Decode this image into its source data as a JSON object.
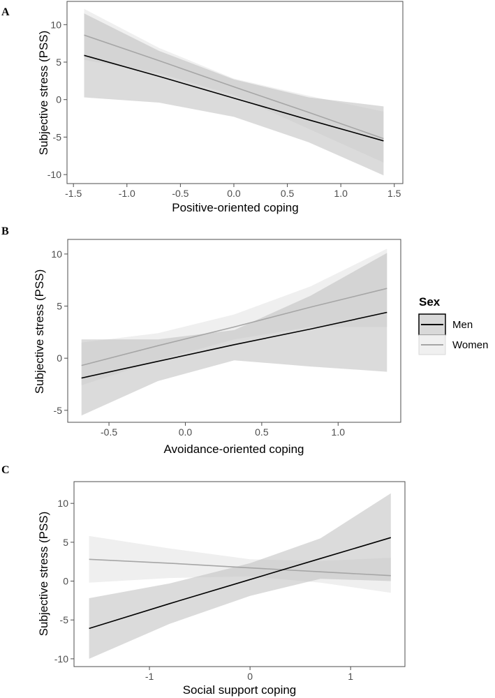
{
  "chart_data": [
    {
      "type": "line",
      "panel": "A",
      "title": "",
      "xlabel": "Positive-oriented coping",
      "ylabel": "Subjective stress (PSS)",
      "xlim": [
        -1.56,
        1.58
      ],
      "ylim": [
        -11.2,
        13.1
      ],
      "xticks": [
        -1.5,
        -1.0,
        -0.5,
        0.0,
        0.5,
        1.0,
        1.5
      ],
      "xtick_labels": [
        "-1.5",
        "-1.0",
        "-0.5",
        "0.0",
        "0.5",
        "1.0",
        "1.5"
      ],
      "yticks": [
        10,
        5,
        0,
        -5,
        -10
      ],
      "ytick_labels": [
        "10",
        "5",
        "0",
        "-5",
        "-10"
      ],
      "grid": false,
      "series": [
        {
          "name": "Women",
          "color": "#a6a6a6",
          "band_color": "#f0f0f0",
          "x": [
            -1.4,
            -0.7,
            0.0,
            0.7,
            1.4
          ],
          "y": [
            8.6,
            5.2,
            1.7,
            -1.7,
            -5.2
          ],
          "lower": [
            5.3,
            3.5,
            0.6,
            -3.9,
            -8.4
          ],
          "upper": [
            12.1,
            6.9,
            2.8,
            0.5,
            -1.6
          ]
        },
        {
          "name": "Men",
          "color": "#000000",
          "band_color": "#d9d9d9",
          "x": [
            -1.4,
            -0.7,
            0.0,
            0.7,
            1.4
          ],
          "y": [
            5.9,
            3.1,
            0.2,
            -2.7,
            -5.5
          ],
          "lower": [
            0.3,
            -0.4,
            -2.3,
            -5.7,
            -10.1
          ],
          "upper": [
            11.5,
            6.5,
            2.7,
            0.3,
            -0.9
          ]
        }
      ]
    },
    {
      "type": "line",
      "panel": "B",
      "title": "",
      "xlabel": "Avoidance-oriented coping",
      "ylabel": "Subjective stress (PSS)",
      "xlim": [
        -0.77,
        1.41
      ],
      "ylim": [
        -6.15,
        11.4
      ],
      "xticks": [
        -0.5,
        0.0,
        0.5,
        1.0
      ],
      "xtick_labels": [
        "-0.5",
        "0.0",
        "0.5",
        "1.0"
      ],
      "yticks": [
        10,
        5,
        0,
        -5
      ],
      "ytick_labels": [
        "10",
        "5",
        "0",
        "-5"
      ],
      "grid": false,
      "series": [
        {
          "name": "Women",
          "color": "#a6a6a6",
          "band_color": "#f0f0f0",
          "x": [
            -0.68,
            -0.18,
            0.32,
            0.82,
            1.32
          ],
          "y": [
            -0.7,
            1.2,
            3.0,
            4.9,
            6.7
          ],
          "lower": [
            -2.6,
            -0.2,
            1.8,
            3.0,
            3.0
          ],
          "upper": [
            1.5,
            2.4,
            4.2,
            6.9,
            10.5
          ]
        },
        {
          "name": "Men",
          "color": "#000000",
          "band_color": "#d9d9d9",
          "x": [
            -0.68,
            -0.18,
            0.32,
            0.82,
            1.32
          ],
          "y": [
            -1.9,
            -0.3,
            1.3,
            2.8,
            4.4
          ],
          "lower": [
            -5.5,
            -2.2,
            -0.2,
            -0.8,
            -1.3
          ],
          "upper": [
            1.8,
            1.8,
            2.7,
            6.0,
            10.1
          ]
        }
      ]
    },
    {
      "type": "line",
      "panel": "C",
      "title": "",
      "xlabel": "Social support coping",
      "ylabel": "Subjective stress (PSS)",
      "xlim": [
        -1.75,
        1.54
      ],
      "ylim": [
        -11.0,
        12.8
      ],
      "xticks": [
        -1,
        0,
        1
      ],
      "xtick_labels": [
        "-1",
        "0",
        "1"
      ],
      "yticks": [
        10,
        5,
        0,
        -5,
        -10
      ],
      "ytick_labels": [
        "10",
        "5",
        "0",
        "-5",
        "-10"
      ],
      "grid": false,
      "series": [
        {
          "name": "Women",
          "color": "#a6a6a6",
          "band_color": "#f0f0f0",
          "x": [
            -1.6,
            -0.8,
            0.0,
            0.7,
            1.4
          ],
          "y": [
            2.8,
            2.3,
            1.7,
            1.2,
            0.7
          ],
          "lower": [
            -0.2,
            0.4,
            0.6,
            -0.2,
            -1.5
          ],
          "upper": [
            5.8,
            4.2,
            2.8,
            2.6,
            3.0
          ]
        },
        {
          "name": "Men",
          "color": "#000000",
          "band_color": "#d9d9d9",
          "x": [
            -1.6,
            -0.8,
            0.0,
            0.7,
            1.4
          ],
          "y": [
            -6.1,
            -2.9,
            0.2,
            2.9,
            5.6
          ],
          "lower": [
            -10.0,
            -5.5,
            -1.9,
            0.3,
            0.0
          ],
          "upper": [
            -2.2,
            -0.3,
            2.3,
            5.5,
            11.3
          ]
        }
      ]
    }
  ],
  "legend": {
    "title": "Sex",
    "position": "right",
    "items": [
      {
        "label": "Men",
        "color": "#000000",
        "band_color": "#d9d9d9"
      },
      {
        "label": "Women",
        "color": "#a6a6a6",
        "band_color": "#f0f0f0"
      }
    ]
  }
}
